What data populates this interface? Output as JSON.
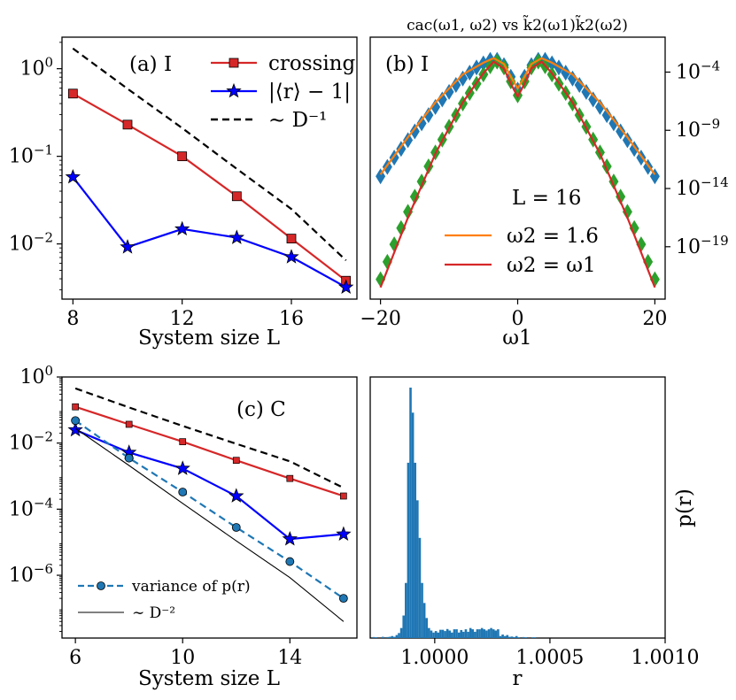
{
  "chart_data": [
    {
      "id": "a",
      "type": "line",
      "scale": "log-y",
      "panel_label": "(a) I",
      "xlabel": "System size L",
      "xlim": [
        7.6,
        18.4
      ],
      "ylim_exp": [
        -2.63,
        0.36
      ],
      "xticks": [
        8,
        12,
        16
      ],
      "yticks": [
        {
          "exp": 0,
          "label": "10",
          "sup": "0"
        },
        {
          "exp": -1,
          "label": "10",
          "sup": "−1"
        },
        {
          "exp": -2,
          "label": "10",
          "sup": "−2"
        }
      ],
      "x": [
        8,
        10,
        12,
        14,
        16,
        18
      ],
      "series": [
        {
          "name": "crossing",
          "color": "#d62728",
          "marker": "square",
          "values": [
            0.52,
            0.23,
            0.1,
            0.035,
            0.0115,
            0.0038
          ]
        },
        {
          "name": "|⟨r⟩ − 1|",
          "color": "#0000ff",
          "marker": "star",
          "values": [
            0.058,
            0.0092,
            0.0148,
            0.0118,
            0.0071,
            0.0032
          ]
        },
        {
          "name": "∼ D⁻¹",
          "color": "#000000",
          "dashed": true,
          "marker": "none",
          "values": [
            1.7,
            0.59,
            0.21,
            0.072,
            0.025,
            0.0065
          ]
        }
      ],
      "legend": "top-right"
    },
    {
      "id": "b",
      "type": "line",
      "scale": "log-y",
      "title": "cac(ω1, ω2) vs k̃2(ω1)k̃2(ω2)",
      "panel_label": "(b) I",
      "annotation": "L = 16",
      "xlabel": "ω1",
      "xlim": [
        -21.5,
        21.5
      ],
      "ylim_exp": [
        -23.5,
        -1.0
      ],
      "xticks": [
        -20,
        0,
        20
      ],
      "yticks": [
        {
          "exp": -4,
          "label": "10",
          "sup": "−4"
        },
        {
          "exp": -9,
          "label": "10",
          "sup": "−9"
        },
        {
          "exp": -14,
          "label": "10",
          "sup": "−14"
        },
        {
          "exp": -19,
          "label": "10",
          "sup": "−19"
        }
      ],
      "series": [
        {
          "name": "ω2 = 1.6",
          "color": "#ff7f0e",
          "marker": "none",
          "x": [
            -20,
            -16,
            -12,
            -8,
            -5,
            -3.5,
            -2,
            -1,
            0,
            1,
            2,
            3.5,
            5,
            8,
            12,
            16,
            20
          ],
          "exp": [
            -12.8,
            -9.6,
            -6.6,
            -4.2,
            -3.2,
            -2.8,
            -3.3,
            -4.4,
            -5.4,
            -4.4,
            -3.3,
            -2.8,
            -3.2,
            -4.2,
            -6.6,
            -9.6,
            -12.8
          ]
        },
        {
          "name": "ω2 = ω1",
          "color": "#d62728",
          "marker": "none",
          "x": [
            -20,
            -16,
            -12,
            -8,
            -5,
            -3.5,
            -2,
            -1,
            0,
            1,
            2,
            3.5,
            5,
            8,
            12,
            16,
            20
          ],
          "exp": [
            -22.5,
            -16.5,
            -11.0,
            -6.6,
            -4.1,
            -3.1,
            -3.7,
            -5.0,
            -6.1,
            -5.0,
            -3.7,
            -3.1,
            -4.1,
            -6.6,
            -11.0,
            -16.5,
            -22.5
          ]
        },
        {
          "name": "blue-diamonds",
          "color": "#1f77b4",
          "marker": "diamond",
          "x": [
            -20,
            -19,
            -18,
            -17,
            -16,
            -15,
            -14,
            -13,
            -12,
            -11,
            -10,
            -9,
            -8,
            -7,
            -6,
            -5,
            -4,
            -3,
            -2,
            -1,
            0,
            1,
            2,
            3,
            4,
            5,
            6,
            7,
            8,
            9,
            10,
            11,
            12,
            13,
            14,
            15,
            16,
            17,
            18,
            19,
            20
          ],
          "exp": [
            -12.95,
            -12.15,
            -11.35,
            -10.6,
            -9.85,
            -9.1,
            -8.4,
            -7.7,
            -7.0,
            -6.35,
            -5.7,
            -5.1,
            -4.55,
            -4.05,
            -3.6,
            -3.25,
            -2.95,
            -2.95,
            -3.4,
            -4.4,
            -5.5,
            -4.4,
            -3.4,
            -2.95,
            -2.95,
            -3.25,
            -3.6,
            -4.05,
            -4.55,
            -5.1,
            -5.7,
            -6.35,
            -7.0,
            -7.7,
            -8.4,
            -9.1,
            -9.85,
            -10.6,
            -11.35,
            -12.15,
            -12.95
          ]
        },
        {
          "name": "green-diamonds",
          "color": "#2ca02c",
          "marker": "diamond",
          "x": [
            -20,
            -19,
            -18,
            -17,
            -16,
            -15,
            -14,
            -13,
            -12,
            -11,
            -10,
            -9,
            -8,
            -7,
            -6,
            -5,
            -4,
            -3,
            -2,
            -1,
            0,
            1,
            2,
            3,
            4,
            5,
            6,
            7,
            8,
            9,
            10,
            11,
            12,
            13,
            14,
            15,
            16,
            17,
            18,
            19,
            20
          ],
          "exp": [
            -21.8,
            -20.3,
            -18.8,
            -17.4,
            -16.0,
            -14.7,
            -13.4,
            -12.1,
            -10.9,
            -9.8,
            -8.7,
            -7.7,
            -6.7,
            -5.8,
            -5.0,
            -4.2,
            -3.5,
            -3.1,
            -3.6,
            -4.8,
            -6.0,
            -4.8,
            -3.6,
            -3.1,
            -3.5,
            -4.2,
            -5.0,
            -5.8,
            -6.7,
            -7.7,
            -8.7,
            -9.8,
            -10.9,
            -12.1,
            -13.4,
            -14.7,
            -16.0,
            -17.4,
            -18.8,
            -20.3,
            -21.8
          ]
        }
      ],
      "legend": "lower-center"
    },
    {
      "id": "c",
      "type": "line",
      "scale": "log-y",
      "panel_label": "(c) C",
      "xlabel": "System size L",
      "xlim": [
        5.5,
        16.5
      ],
      "ylim_exp": [
        -7.9,
        0.0
      ],
      "xticks": [
        6,
        10,
        14
      ],
      "yticks": [
        {
          "exp": 0,
          "label": "10",
          "sup": "0"
        },
        {
          "exp": -2,
          "label": "10",
          "sup": "−2"
        },
        {
          "exp": -4,
          "label": "10",
          "sup": "−4"
        },
        {
          "exp": -6,
          "label": "10",
          "sup": "−6"
        }
      ],
      "x": [
        6,
        8,
        10,
        12,
        14,
        16
      ],
      "series": [
        {
          "name": "crossing",
          "color": "#d62728",
          "marker": "small-square",
          "values": [
            0.125,
            0.037,
            0.011,
            0.003,
            0.00085,
            0.00025
          ]
        },
        {
          "name": "|⟨r⟩ − 1|",
          "color": "#0000ff",
          "marker": "star",
          "values": [
            0.025,
            0.0052,
            0.0017,
            0.00025,
            1.25e-05,
            1.75e-05
          ]
        },
        {
          "name": "∼ D⁻¹",
          "color": "#000000",
          "dashed": true,
          "marker": "none",
          "values": [
            0.45,
            0.12,
            0.033,
            0.0095,
            0.0028,
            0.00044
          ]
        },
        {
          "name": "variance of p(r)",
          "color": "#1f77b4",
          "dashed": true,
          "marker": "circle",
          "values": [
            0.048,
            0.0035,
            0.00033,
            2.8e-05,
            2.6e-06,
            2e-07
          ]
        },
        {
          "name": "∼ D⁻²",
          "color": "#000000",
          "marker": "none",
          "thin": true,
          "values": [
            0.028,
            0.0021,
            0.00015,
            1.1e-05,
            8.5e-07,
            4e-08
          ]
        }
      ],
      "legend": "lower-left"
    },
    {
      "id": "d",
      "type": "bar",
      "xlabel": "r",
      "ylabel": "p(r)",
      "xlim": [
        0.99972,
        1.001
      ],
      "xticks": [
        {
          "v": 1.0,
          "label": "1.0000"
        },
        {
          "v": 1.0005,
          "label": "1.0005"
        },
        {
          "v": 1.001,
          "label": "1.0010"
        }
      ],
      "bin_start": 0.99972,
      "bin_width": 1e-05,
      "color": "#1f77b4",
      "ymax": 100,
      "values": [
        0,
        0.4,
        0.3,
        0,
        0,
        0.5,
        0,
        0.4,
        0.5,
        0.8,
        0.5,
        1.2,
        2,
        4,
        9,
        22,
        70,
        100,
        90,
        70,
        55,
        40,
        22,
        14,
        8,
        4,
        3,
        2.2,
        2.8,
        2.2,
        3.3,
        3.3,
        2.8,
        3.6,
        3,
        2.2,
        3.5,
        3.5,
        2.2,
        3.2,
        2.5,
        3.5,
        2.5,
        4,
        3.5,
        2.5,
        3.5,
        3.5,
        4,
        3.5,
        3,
        3.5,
        4,
        3.5,
        3,
        3.5,
        0.8,
        1.4,
        0.8,
        1.2,
        0.5,
        0.6,
        0.4,
        0.8,
        0.3,
        0,
        0.4,
        0.3,
        0,
        0,
        0.3,
        0.3
      ]
    }
  ]
}
